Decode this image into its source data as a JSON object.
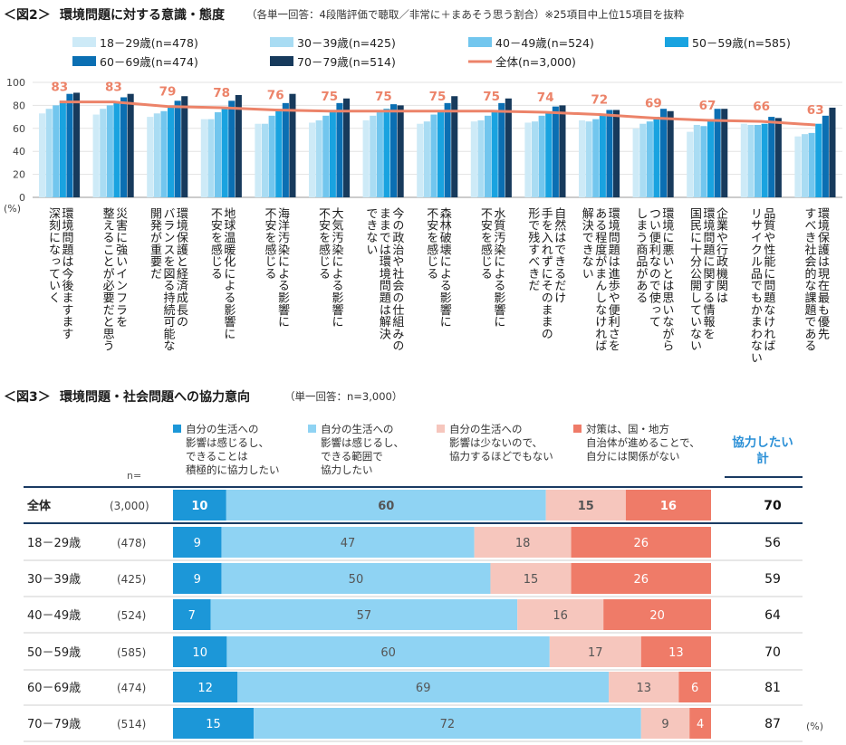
{
  "colors": {
    "age18_29": "#cdeaf7",
    "age30_39": "#a9dcf3",
    "age40_49": "#72c6ee",
    "age50_59": "#19a3e0",
    "age60_69": "#0b6fb3",
    "age70_79": "#173a5c",
    "total_line": "#ec8369",
    "seg_active": "#1c97d8",
    "seg_moderate": "#8fd3f3",
    "seg_little": "#f6c6bd",
    "seg_none": "#ef7b68",
    "header_navy": "#1a3b63",
    "sum_blue": "#2a8fd6"
  },
  "fig2": {
    "label": "＜図2＞",
    "title": "環境問題に対する意識・態度",
    "subtitle": "（各単一回答：4段階評価で聴取／非常に＋まあそう思う割合）※25項目中上位15項目を抜粋",
    "unit": "(%)"
  },
  "fig3": {
    "label": "＜図3＞",
    "title": "環境問題・社会問題への協力意向",
    "subtitle": "（単一回答：n=3,000）",
    "n_label": "n=",
    "sum_header": [
      "協力したい",
      "計"
    ],
    "unit": "(%)"
  },
  "chart_data": [
    {
      "type": "bar",
      "title": "環境問題に対する意識・態度",
      "ylim": [
        0,
        100
      ],
      "yticks": [
        "0",
        "20",
        "40",
        "60",
        "80",
        "100"
      ],
      "categories": [
        [
          "環境問題は今後ますます",
          "深刻になっていく"
        ],
        [
          "災害に強いインフラを",
          "整えることが必要だと思う"
        ],
        [
          "環境保護と経済成長の",
          "バランスを図る持続可能な",
          "開発が重要だ"
        ],
        [
          "地球温暖化による影響に",
          "不安を感じる"
        ],
        [
          "海洋汚染による影響に",
          "不安を感じる"
        ],
        [
          "大気汚染による影響に",
          "不安を感じる"
        ],
        [
          "今の政治や社会の仕組みの",
          "ままでは環境問題は解決",
          "できない"
        ],
        [
          "森林破壊による影響に",
          "不安を感じる"
        ],
        [
          "水質汚染による影響に",
          "不安を感じる"
        ],
        [
          "自然はできるだけ",
          "手を入れずにそのままの",
          "形で残すべきだ"
        ],
        [
          "環境問題は進歩や便利さを",
          "ある程度がまんしなければ",
          "解決できない"
        ],
        [
          "環境に悪いとは思いながら",
          "つい便利なので使って",
          "しまう商品がある"
        ],
        [
          "企業や行政機関は",
          "環境問題に関する情報を",
          "国民に十分公開していない"
        ],
        [
          "品質や性能に問題なければ",
          "リサイクル品でもかまわない"
        ],
        [
          "環境保護は現在最も優先",
          "すべき社会的な課題である"
        ]
      ],
      "series": [
        {
          "name": "18－29歳(n=478)",
          "color_key": "age18_29",
          "values": [
            73,
            72,
            70,
            68,
            64,
            65,
            67,
            64,
            66,
            65,
            67,
            60,
            57,
            64,
            53
          ]
        },
        {
          "name": "30－39歳(n=425)",
          "color_key": "age30_39",
          "values": [
            77,
            77,
            73,
            68,
            64,
            67,
            71,
            66,
            67,
            66,
            66,
            64,
            63,
            63,
            55
          ]
        },
        {
          "name": "40－49歳(n=524)",
          "color_key": "age40_49",
          "values": [
            80,
            80,
            75,
            74,
            71,
            71,
            74,
            72,
            71,
            71,
            68,
            66,
            62,
            63,
            56
          ]
        },
        {
          "name": "50－59歳(n=585)",
          "color_key": "age50_59",
          "values": [
            84,
            83,
            79,
            78,
            76,
            76,
            77,
            76,
            75,
            74,
            72,
            70,
            67,
            64,
            64
          ]
        },
        {
          "name": "60－69歳(n=474)",
          "color_key": "age60_69",
          "values": [
            90,
            87,
            84,
            84,
            82,
            82,
            81,
            82,
            82,
            79,
            76,
            77,
            77,
            70,
            71
          ]
        },
        {
          "name": "70－79歳(n=514)",
          "color_key": "age70_79",
          "values": [
            91,
            90,
            88,
            89,
            90,
            86,
            80,
            88,
            86,
            80,
            76,
            75,
            77,
            69,
            78
          ]
        }
      ],
      "line": {
        "name": "全体(n=3,000)",
        "color_key": "total_line",
        "values": [
          83,
          83,
          79,
          78,
          76,
          75,
          75,
          75,
          75,
          74,
          72,
          69,
          67,
          66,
          63
        ]
      }
    },
    {
      "type": "stacked-bar-horizontal",
      "title": "環境問題・社会問題への協力意向",
      "segments": [
        {
          "lines": [
            "自分の生活への",
            "影響は感じるし、",
            "できることは",
            "積極的に協力したい"
          ],
          "color_key": "seg_active"
        },
        {
          "lines": [
            "自分の生活への",
            "影響は感じるし、",
            "できる範囲で",
            "協力したい"
          ],
          "color_key": "seg_moderate"
        },
        {
          "lines": [
            "自分の生活への",
            "影響は少ないので、",
            "協力するほどでもない"
          ],
          "color_key": "seg_little"
        },
        {
          "lines": [
            "対策は、国・地方",
            "自治体が進めることで、",
            "自分には関係がない"
          ],
          "color_key": "seg_none"
        }
      ],
      "rows": [
        {
          "label": "全体",
          "n": "(3,000)",
          "values": [
            10,
            60,
            15,
            16
          ],
          "sum": 70,
          "bold": true
        },
        {
          "label": "18－29歳",
          "n": "(478)",
          "values": [
            9,
            47,
            18,
            26
          ],
          "sum": 56
        },
        {
          "label": "30－39歳",
          "n": "(425)",
          "values": [
            9,
            50,
            15,
            26
          ],
          "sum": 59
        },
        {
          "label": "40－49歳",
          "n": "(524)",
          "values": [
            7,
            57,
            16,
            20
          ],
          "sum": 64
        },
        {
          "label": "50－59歳",
          "n": "(585)",
          "values": [
            10,
            60,
            17,
            13
          ],
          "sum": 70
        },
        {
          "label": "60－69歳",
          "n": "(474)",
          "values": [
            12,
            69,
            13,
            6
          ],
          "sum": 81
        },
        {
          "label": "70－79歳",
          "n": "(514)",
          "values": [
            15,
            72,
            9,
            4
          ],
          "sum": 87
        }
      ]
    }
  ]
}
